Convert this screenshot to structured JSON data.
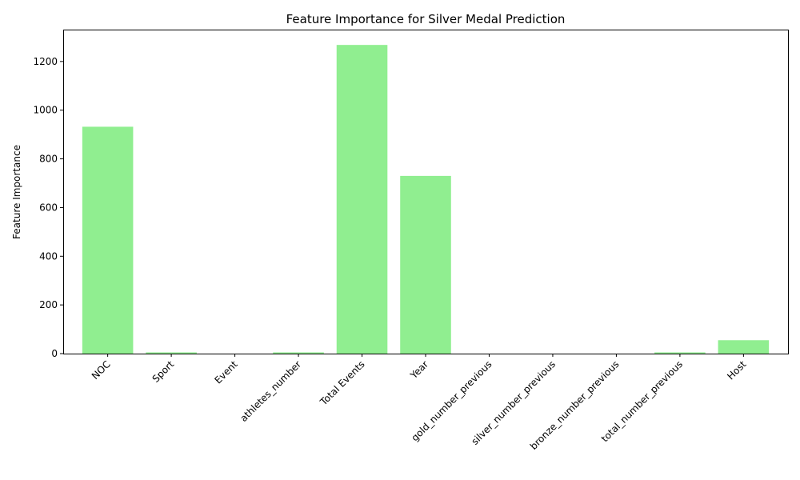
{
  "chart_data": {
    "type": "bar",
    "title": "Feature Importance for Silver Medal Prediction",
    "xlabel": "",
    "ylabel": "Feature Importance",
    "categories": [
      "NOC",
      "Sport",
      "Event",
      "athletes_number",
      "Total Events",
      "Year",
      "gold_number_previous",
      "silver_number_previous",
      "bronze_number_previous",
      "total_number_previous",
      "Host"
    ],
    "values": [
      932,
      5,
      0,
      5,
      1268,
      730,
      0,
      0,
      0,
      5,
      55
    ],
    "ylim": [
      0,
      1331
    ],
    "yticks": [
      0,
      200,
      400,
      600,
      800,
      1000,
      1200
    ],
    "ytick_labels": [
      "0",
      "200",
      "400",
      "600",
      "800",
      "1000",
      "1200"
    ],
    "bar_color": "#90ee90",
    "grid": false,
    "legend": false
  }
}
